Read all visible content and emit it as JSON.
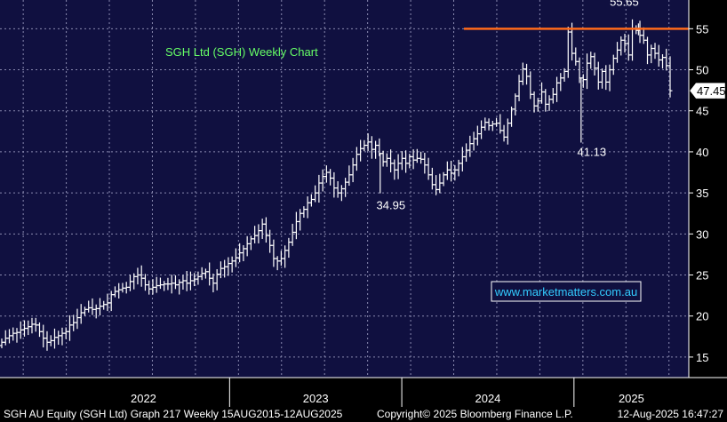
{
  "chart_data": {
    "type": "ohlc",
    "title": "SGH Ltd (SGH) Weekly Chart",
    "y_ticks": [
      15,
      20,
      25,
      30,
      35,
      40,
      45,
      50,
      55
    ],
    "ylim": [
      12.5,
      58.5
    ],
    "x_ticks": [
      "2022",
      "2023",
      "2024",
      "2025"
    ],
    "x_range": [
      "2021-09",
      "2025-09"
    ],
    "last_price": "47.45",
    "resistance_level": 55,
    "annotations": [
      {
        "label": "55.65",
        "date": "2025-05",
        "value": 55.65
      },
      {
        "label": "41.13",
        "date": "2025-01",
        "value": 41.13
      },
      {
        "label": "34.95",
        "date": "2023-11",
        "value": 34.95
      }
    ],
    "weekly_closes": [
      16.8,
      17.3,
      17.6,
      17.9,
      18.0,
      18.3,
      18.5,
      18.7,
      19.0,
      18.9,
      18.1,
      17.3,
      16.8,
      17.0,
      17.4,
      17.6,
      17.9,
      18.1,
      18.9,
      19.2,
      19.8,
      20.4,
      20.8,
      21.0,
      20.8,
      20.9,
      21.2,
      21.4,
      21.6,
      22.6,
      23.0,
      23.2,
      23.4,
      23.5,
      24.2,
      24.8,
      25.0,
      24.6,
      23.8,
      23.3,
      23.5,
      23.7,
      23.8,
      23.9,
      23.9,
      24.0,
      23.8,
      24.1,
      24.3,
      24.0,
      24.3,
      24.5,
      24.8,
      25.2,
      25.4,
      24.6,
      24.0,
      25.1,
      25.8,
      26.0,
      26.4,
      26.7,
      27.1,
      27.7,
      28.2,
      28.8,
      29.4,
      29.8,
      30.4,
      31.2,
      29.8,
      28.6,
      27.0,
      26.7,
      27.0,
      28.0,
      29.0,
      30.2,
      31.5,
      32.5,
      33.0,
      33.8,
      34.2,
      35.0,
      36.2,
      37.0,
      37.5,
      36.8,
      35.6,
      35.0,
      35.5,
      36.3,
      37.2,
      38.4,
      39.7,
      40.4,
      40.8,
      41.2,
      40.3,
      40.8,
      39.8,
      38.8,
      39.2,
      38.6,
      37.8,
      38.6,
      39.2,
      38.6,
      39.4,
      39.0,
      39.2,
      39.1,
      38.4,
      37.2,
      36.0,
      35.4,
      36.2,
      37.2,
      37.8,
      37.4,
      37.8,
      38.6,
      39.4,
      40.2,
      41.0,
      41.6,
      42.2,
      43.0,
      43.6,
      43.2,
      43.4,
      43.5,
      42.6,
      41.8,
      43.5,
      45.2,
      46.8,
      48.6,
      50.1,
      49.2,
      47.0,
      45.6,
      46.2,
      47.3,
      45.8,
      46.4,
      47.0,
      48.4,
      49.0,
      49.8,
      54.6,
      52.0,
      51.0,
      49.0,
      48.8,
      50.8,
      51.6,
      50.2,
      48.5,
      49.8,
      48.5,
      50.0,
      51.4,
      52.4,
      53.6,
      53.2,
      51.8,
      55.0,
      54.8,
      54.2,
      53.6,
      51.8,
      52.6,
      52.0,
      51.2,
      51.5,
      50.5,
      47.45
    ],
    "footer": {
      "left": "SGH AU Equity (SGH Ltd) Graph 217 Weekly 15AUG2015-12AUG2025",
      "center": "Copyright© 2025 Bloomberg Finance L.P.",
      "right": "12-Aug-2025 16:47:27"
    },
    "watermark": "www.marketmatters.com.au",
    "colors": {
      "background": "#000000",
      "plot_background": "#101040",
      "grid": "#8a8ab0",
      "bars": "#ffffff",
      "resistance": "#ff6a1a",
      "title": "#66ff66",
      "url": "#33ccff"
    }
  }
}
